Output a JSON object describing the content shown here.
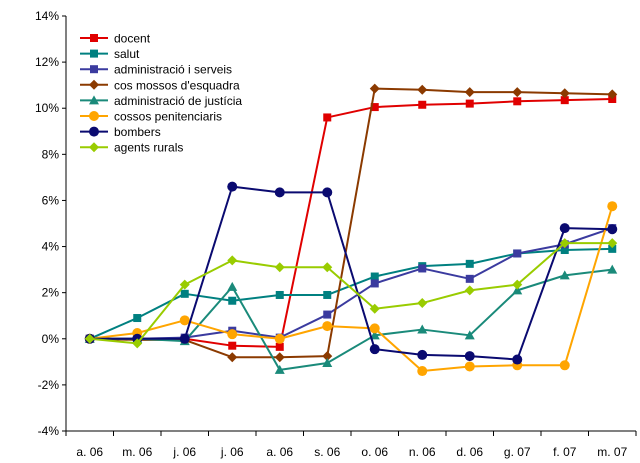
{
  "chart_data": {
    "type": "line",
    "categories": [
      "a. 06",
      "m. 06",
      "j. 06",
      "j. 06",
      "a. 06",
      "s. 06",
      "o. 06",
      "n. 06",
      "d. 06",
      "g. 07",
      "f. 07",
      "m. 07"
    ],
    "ylim": [
      -4,
      14
    ],
    "y_ticks": [
      -4,
      -2,
      0,
      2,
      4,
      6,
      8,
      10,
      12,
      14
    ],
    "y_tick_labels": [
      "-4%",
      "-2%",
      "0%",
      "2%",
      "4%",
      "6%",
      "8%",
      "10%",
      "12%",
      "14%"
    ],
    "grid": false,
    "legend_position": "top-left",
    "series": [
      {
        "name": "docent",
        "color": "#e00000",
        "marker": "square",
        "values": [
          0,
          0,
          0,
          -0.3,
          -0.35,
          9.6,
          10.05,
          10.15,
          10.2,
          10.3,
          10.35,
          10.4
        ]
      },
      {
        "name": "salut",
        "color": "#008080",
        "marker": "square",
        "values": [
          0,
          0.9,
          1.95,
          1.65,
          1.9,
          1.9,
          2.7,
          3.15,
          3.25,
          3.7,
          3.85,
          3.9
        ]
      },
      {
        "name": "administració i serveis",
        "color": "#3b3b9f",
        "marker": "square",
        "values": [
          0,
          0,
          0.05,
          0.35,
          0.05,
          1.05,
          2.4,
          3.05,
          2.6,
          3.7,
          4.1,
          4.8
        ]
      },
      {
        "name": "cos mossos d'esquadra",
        "color": "#8b3a00",
        "marker": "diamond",
        "values": [
          0,
          -0.05,
          -0.05,
          -0.8,
          -0.8,
          -0.75,
          10.85,
          10.8,
          10.7,
          10.7,
          10.65,
          10.6
        ]
      },
      {
        "name": "administració de justícia",
        "color": "#1a8a7a",
        "marker": "triangle",
        "values": [
          0,
          0,
          -0.1,
          2.25,
          -1.35,
          -1.05,
          0.15,
          0.4,
          0.15,
          2.1,
          2.75,
          3.0
        ]
      },
      {
        "name": "cossos penitenciaris",
        "color": "#ffa500",
        "marker": "circle",
        "values": [
          0,
          0.25,
          0.8,
          0.2,
          0,
          0.55,
          0.45,
          -1.4,
          -1.2,
          -1.15,
          -1.15,
          5.75
        ]
      },
      {
        "name": "bombers",
        "color": "#0a0a70",
        "marker": "circle",
        "values": [
          0,
          0,
          0,
          6.6,
          6.35,
          6.35,
          -0.45,
          -0.7,
          -0.75,
          -0.9,
          4.8,
          4.75
        ]
      },
      {
        "name": "agents rurals",
        "color": "#99cc00",
        "marker": "diamond",
        "values": [
          0,
          -0.2,
          2.35,
          3.4,
          3.1,
          3.1,
          1.3,
          1.55,
          2.1,
          2.35,
          4.15,
          4.15
        ]
      }
    ]
  }
}
